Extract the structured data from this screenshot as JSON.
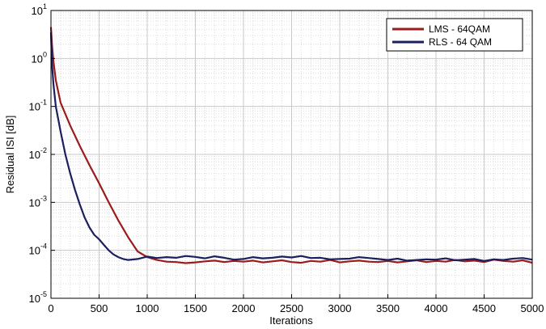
{
  "chart_data": {
    "type": "line",
    "title": "",
    "xlabel": "Iterations",
    "ylabel": "Residual ISI [dB]",
    "xlim": [
      0,
      5000
    ],
    "ylim": [
      1e-05,
      10
    ],
    "yscale": "log",
    "grid": true,
    "minor_grid": true,
    "legend_position": "top-right",
    "x_ticks": [
      0,
      500,
      1000,
      1500,
      2000,
      2500,
      3000,
      3500,
      4000,
      4500,
      5000
    ],
    "y_ticks": [
      {
        "base": "10",
        "exp": "1"
      },
      {
        "base": "10",
        "exp": "0"
      },
      {
        "base": "10",
        "exp": "-1"
      },
      {
        "base": "10",
        "exp": "-2"
      },
      {
        "base": "10",
        "exp": "-3"
      },
      {
        "base": "10",
        "exp": "-4"
      },
      {
        "base": "10",
        "exp": "-5"
      }
    ],
    "series": [
      {
        "name": "LMS - 64QAM",
        "color": "#9b1c1c",
        "x": [
          0,
          10,
          25,
          50,
          100,
          200,
          300,
          400,
          500,
          600,
          700,
          800,
          900,
          1000,
          1100,
          1200,
          1300,
          1400,
          1500,
          1600,
          1700,
          1800,
          1900,
          2000,
          2100,
          2200,
          2300,
          2400,
          2500,
          2600,
          2700,
          2800,
          2900,
          3000,
          3100,
          3200,
          3300,
          3400,
          3500,
          3600,
          3700,
          3800,
          3900,
          4000,
          4100,
          4200,
          4300,
          4400,
          4500,
          4600,
          4700,
          4800,
          4900,
          5000
        ],
        "y": [
          4.5,
          2.0,
          0.9,
          0.35,
          0.12,
          0.04,
          0.015,
          0.006,
          0.0025,
          0.001,
          0.00042,
          0.00019,
          9.5e-05,
          7.2e-05,
          6.3e-05,
          5.8e-05,
          5.7e-05,
          5.4e-05,
          5.6e-05,
          5.9e-05,
          6.1e-05,
          5.7e-05,
          6e-05,
          5.8e-05,
          6.1e-05,
          5.6e-05,
          5.9e-05,
          6.2e-05,
          5.7e-05,
          5.5e-05,
          6e-05,
          5.8e-05,
          6.3e-05,
          5.6e-05,
          5.9e-05,
          6.1e-05,
          5.8e-05,
          5.7e-05,
          6e-05,
          5.6e-05,
          5.9e-05,
          6.2e-05,
          5.7e-05,
          6e-05,
          5.8e-05,
          6.3e-05,
          5.9e-05,
          6.1e-05,
          5.7e-05,
          6.4e-05,
          6e-05,
          5.8e-05,
          6.2e-05,
          5.5e-05
        ]
      },
      {
        "name": "RLS - 64 QAM",
        "color": "#1a1f5e",
        "x": [
          0,
          10,
          25,
          50,
          100,
          150,
          200,
          250,
          300,
          350,
          400,
          450,
          500,
          550,
          600,
          650,
          700,
          750,
          800,
          900,
          1000,
          1100,
          1200,
          1300,
          1400,
          1500,
          1600,
          1700,
          1800,
          1900,
          2000,
          2100,
          2200,
          2300,
          2400,
          2500,
          2600,
          2700,
          2800,
          2900,
          3000,
          3100,
          3200,
          3300,
          3400,
          3500,
          3600,
          3700,
          3800,
          3900,
          4000,
          4100,
          4200,
          4300,
          4400,
          4500,
          4600,
          4700,
          4800,
          4900,
          5000
        ],
        "y": [
          3.5,
          0.8,
          0.3,
          0.1,
          0.03,
          0.01,
          0.004,
          0.0018,
          0.0009,
          0.00048,
          0.0003,
          0.00021,
          0.00017,
          0.00013,
          0.0001,
          8.2e-05,
          7.2e-05,
          6.6e-05,
          6.3e-05,
          6.6e-05,
          7.4e-05,
          6.9e-05,
          7.2e-05,
          7e-05,
          7.6e-05,
          7.3e-05,
          6.8e-05,
          7.5e-05,
          7e-05,
          6.4e-05,
          6.6e-05,
          7.2e-05,
          6.8e-05,
          7e-05,
          7.4e-05,
          7.1e-05,
          7.6e-05,
          6.9e-05,
          7e-05,
          6.5e-05,
          6.6e-05,
          6.7e-05,
          7.2e-05,
          6.9e-05,
          6.6e-05,
          6.3e-05,
          6.7e-05,
          6.1e-05,
          6.3e-05,
          6.5e-05,
          6.4e-05,
          6.8e-05,
          6.2e-05,
          6.4e-05,
          6.6e-05,
          6e-05,
          6.5e-05,
          6.3e-05,
          6.7e-05,
          6.9e-05,
          6.4e-05
        ]
      }
    ]
  }
}
